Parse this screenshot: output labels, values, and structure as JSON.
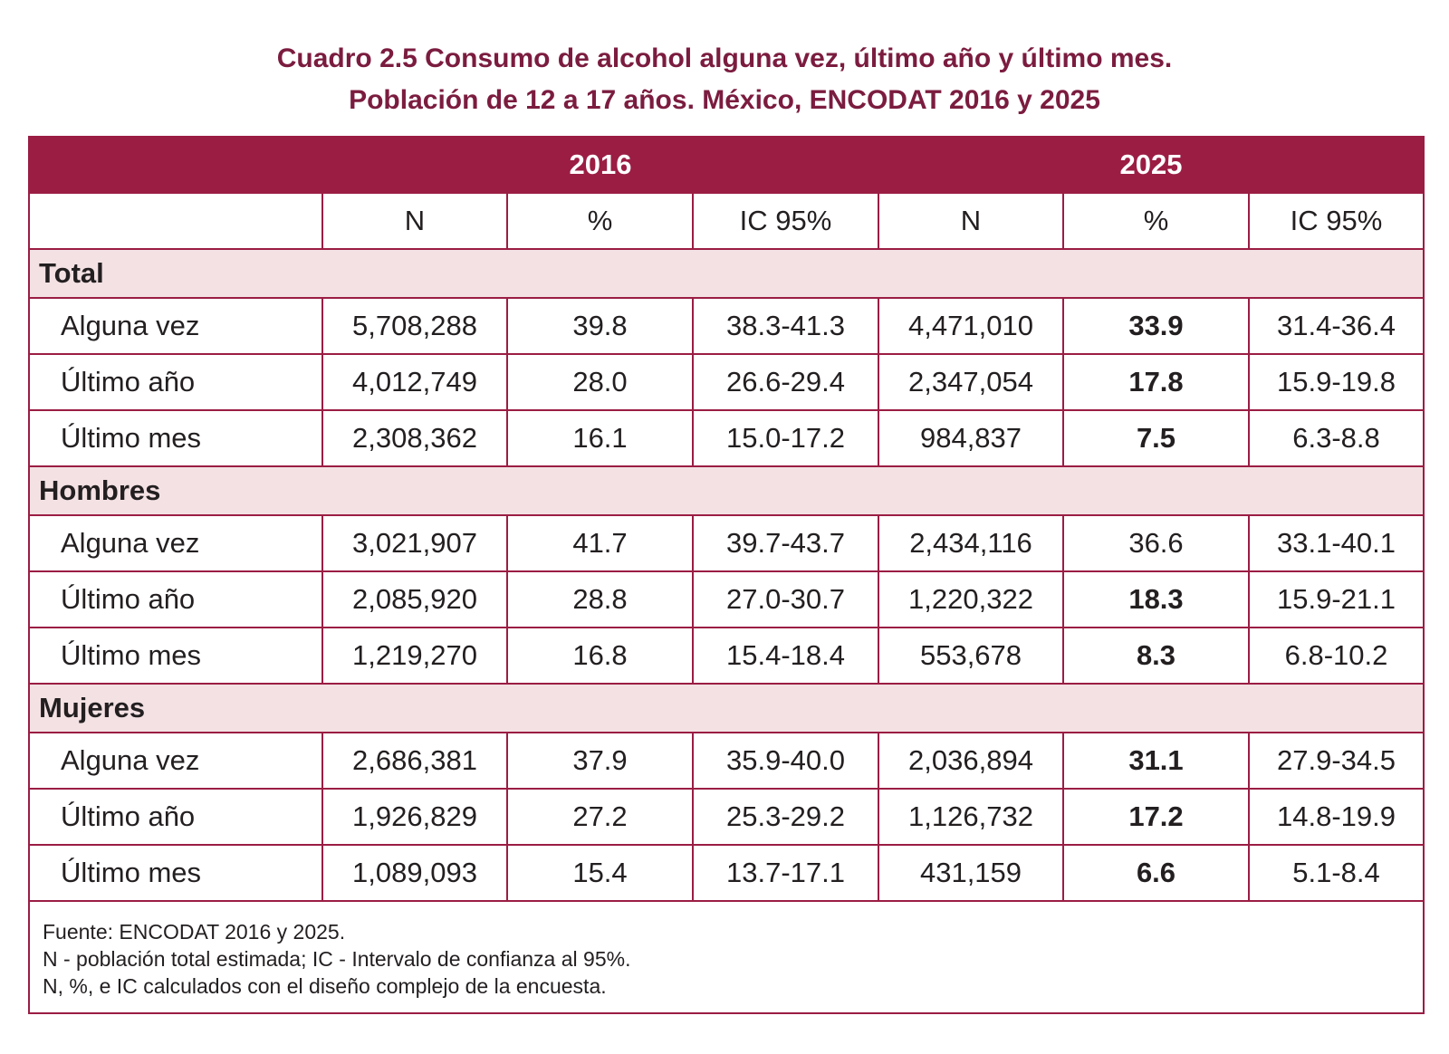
{
  "caption": {
    "line1": "Cuadro 2.5 Consumo de alcohol alguna vez, último año y último mes.",
    "line2": "Población de 12 a 17 años. México, ENCODAT 2016 y 2025"
  },
  "colors": {
    "header_bg": "#9b1d44",
    "group_bg": "#f3e1e4",
    "caption_text": "#7b1c3f"
  },
  "table": {
    "years": [
      "2016",
      "2025"
    ],
    "subheaders": [
      "N",
      "%",
      "IC 95%",
      "N",
      "%",
      "IC 95%"
    ],
    "groups": [
      {
        "name": "Total",
        "rows": [
          {
            "label": "Alguna vez",
            "n2016": "5,708,288",
            "p2016": "39.8",
            "ic2016": "38.3-41.3",
            "n2025": "4,471,010",
            "p2025": "33.9",
            "ic2025": "31.4-36.4"
          },
          {
            "label": "Último año",
            "n2016": "4,012,749",
            "p2016": "28.0",
            "ic2016": "26.6-29.4",
            "n2025": "2,347,054",
            "p2025": "17.8",
            "ic2025": "15.9-19.8"
          },
          {
            "label": "Último mes",
            "n2016": "2,308,362",
            "p2016": "16.1",
            "ic2016": "15.0-17.2",
            "n2025": "984,837",
            "p2025": "7.5",
            "ic2025": "6.3-8.8"
          }
        ]
      },
      {
        "name": "Hombres",
        "rows": [
          {
            "label": "Alguna vez",
            "n2016": "3,021,907",
            "p2016": "41.7",
            "ic2016": "39.7-43.7",
            "n2025": "2,434,116",
            "p2025": "36.6",
            "ic2025": "33.1-40.1"
          },
          {
            "label": "Último año",
            "n2016": "2,085,920",
            "p2016": "28.8",
            "ic2016": "27.0-30.7",
            "n2025": "1,220,322",
            "p2025": "18.3",
            "ic2025": "15.9-21.1"
          },
          {
            "label": "Último mes",
            "n2016": "1,219,270",
            "p2016": "16.8",
            "ic2016": "15.4-18.4",
            "n2025": "553,678",
            "p2025": "8.3",
            "ic2025": "6.8-10.2"
          }
        ]
      },
      {
        "name": "Mujeres",
        "rows": [
          {
            "label": "Alguna vez",
            "n2016": "2,686,381",
            "p2016": "37.9",
            "ic2016": "35.9-40.0",
            "n2025": "2,036,894",
            "p2025": "31.1",
            "ic2025": "27.9-34.5"
          },
          {
            "label": "Último año",
            "n2016": "1,926,829",
            "p2016": "27.2",
            "ic2016": "25.3-29.2",
            "n2025": "1,126,732",
            "p2025": "17.2",
            "ic2025": "14.8-19.9"
          },
          {
            "label": "Último mes",
            "n2016": "1,089,093",
            "p2016": "15.4",
            "ic2016": "13.7-17.1",
            "n2025": "431,159",
            "p2025": "6.6",
            "ic2025": "5.1-8.4"
          }
        ]
      }
    ],
    "footnotes": [
      "Fuente: ENCODAT 2016 y 2025.",
      "N - población total estimada; IC - Intervalo de confianza al 95%.",
      "N, %, e IC calculados con el diseño complejo de la encuesta."
    ]
  }
}
